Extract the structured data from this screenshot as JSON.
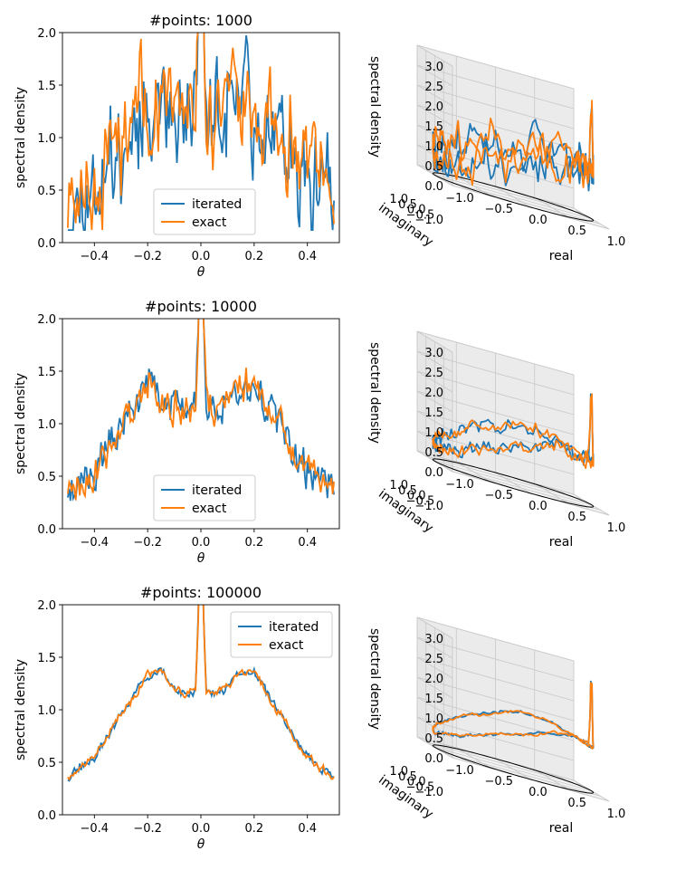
{
  "chart_data": [
    {
      "type": "line",
      "title": "#points: 1000",
      "xlabel": "θ",
      "ylabel": "spectral density",
      "xlim": [
        -0.52,
        0.52
      ],
      "ylim": [
        0.0,
        2.0
      ],
      "xticks": [
        "−0.4",
        "−0.2",
        "0.0",
        "0.2",
        "0.4"
      ],
      "yticks": [
        "0.0",
        "0.5",
        "1.0",
        "1.5",
        "2.0"
      ],
      "legend_loc": "lower-center",
      "noise": 0.42,
      "seed": 11,
      "series": [
        {
          "name": "iterated",
          "color": "#1f77b4"
        },
        {
          "name": "exact",
          "color": "#ff7f0e"
        }
      ],
      "envelope": {
        "theta": [
          -0.5,
          -0.4,
          -0.3,
          -0.2,
          -0.15,
          -0.1,
          -0.05,
          -0.02,
          0.0,
          0.02,
          0.05,
          0.1,
          0.15,
          0.2,
          0.3,
          0.4,
          0.5
        ],
        "density": [
          0.36,
          0.55,
          0.95,
          1.35,
          1.35,
          1.2,
          1.15,
          1.2,
          2.6,
          1.2,
          1.2,
          1.25,
          1.35,
          1.35,
          0.95,
          0.55,
          0.36
        ]
      }
    },
    {
      "type": "line",
      "title": "#points: 10000",
      "xlabel": "θ",
      "ylabel": "spectral density",
      "xlim": [
        -0.52,
        0.52
      ],
      "ylim": [
        0.0,
        2.0
      ],
      "xticks": [
        "−0.4",
        "−0.2",
        "0.0",
        "0.2",
        "0.4"
      ],
      "yticks": [
        "0.0",
        "0.5",
        "1.0",
        "1.5",
        "2.0"
      ],
      "legend_loc": "lower-center",
      "noise": 0.14,
      "seed": 23,
      "series": [
        {
          "name": "iterated",
          "color": "#1f77b4"
        },
        {
          "name": "exact",
          "color": "#ff7f0e"
        }
      ],
      "envelope": {
        "theta": [
          -0.5,
          -0.4,
          -0.3,
          -0.2,
          -0.15,
          -0.1,
          -0.05,
          -0.02,
          0.0,
          0.02,
          0.05,
          0.1,
          0.15,
          0.2,
          0.3,
          0.4,
          0.5
        ],
        "density": [
          0.36,
          0.55,
          0.95,
          1.38,
          1.32,
          1.15,
          1.12,
          1.2,
          2.6,
          1.2,
          1.15,
          1.22,
          1.38,
          1.38,
          0.95,
          0.55,
          0.36
        ]
      }
    },
    {
      "type": "line",
      "title": "#points: 100000",
      "xlabel": "θ",
      "ylabel": "spectral density",
      "xlim": [
        -0.52,
        0.52
      ],
      "ylim": [
        0.0,
        2.0
      ],
      "xticks": [
        "−0.4",
        "−0.2",
        "0.0",
        "0.2",
        "0.4"
      ],
      "yticks": [
        "0.0",
        "0.5",
        "1.0",
        "1.5",
        "2.0"
      ],
      "legend_loc": "upper-right",
      "noise": 0.035,
      "seed": 37,
      "series": [
        {
          "name": "iterated",
          "color": "#1f77b4"
        },
        {
          "name": "exact",
          "color": "#ff7f0e"
        }
      ],
      "envelope": {
        "theta": [
          -0.5,
          -0.4,
          -0.3,
          -0.2,
          -0.15,
          -0.1,
          -0.05,
          -0.02,
          0.0,
          0.02,
          0.05,
          0.1,
          0.15,
          0.2,
          0.3,
          0.4,
          0.5
        ],
        "density": [
          0.36,
          0.55,
          0.95,
          1.33,
          1.37,
          1.2,
          1.15,
          1.18,
          2.6,
          1.18,
          1.15,
          1.22,
          1.35,
          1.35,
          0.95,
          0.55,
          0.36
        ]
      }
    },
    {
      "type": "line3d",
      "xlabel": "real",
      "ylabel": "imaginary",
      "zlabel": "spectral density",
      "xticks": [
        "−1.0",
        "−0.5",
        "0.0",
        "0.5",
        "1.0"
      ],
      "yticks": [
        "−1.0",
        "−0.5",
        "0.0",
        "0.5",
        "1.0"
      ],
      "zticks": [
        "0.0",
        "0.5",
        "1.0",
        "1.5",
        "2.0",
        "2.5",
        "3.0"
      ],
      "zlim": [
        0.0,
        3.0
      ],
      "noise": 0.42,
      "seed": 11,
      "series": [
        {
          "name": "iterated",
          "color": "#1f77b4"
        },
        {
          "name": "exact",
          "color": "#ff7f0e"
        }
      ]
    },
    {
      "type": "line3d",
      "xlabel": "real",
      "ylabel": "imaginary",
      "zlabel": "spectral density",
      "xticks": [
        "−1.0",
        "−0.5",
        "0.0",
        "0.5",
        "1.0"
      ],
      "yticks": [
        "−1.0",
        "−0.5",
        "0.0",
        "0.5",
        "1.0"
      ],
      "zticks": [
        "0.0",
        "0.5",
        "1.0",
        "1.5",
        "2.0",
        "2.5",
        "3.0"
      ],
      "zlim": [
        0.0,
        3.0
      ],
      "noise": 0.14,
      "seed": 23,
      "series": [
        {
          "name": "iterated",
          "color": "#1f77b4"
        },
        {
          "name": "exact",
          "color": "#ff7f0e"
        }
      ]
    },
    {
      "type": "line3d",
      "xlabel": "real",
      "ylabel": "imaginary",
      "zlabel": "spectral density",
      "xticks": [
        "−1.0",
        "−0.5",
        "0.0",
        "0.5",
        "1.0"
      ],
      "yticks": [
        "−1.0",
        "−0.5",
        "0.0",
        "0.5",
        "1.0"
      ],
      "zticks": [
        "0.0",
        "0.5",
        "1.0",
        "1.5",
        "2.0",
        "2.5",
        "3.0"
      ],
      "zlim": [
        0.0,
        3.0
      ],
      "noise": 0.035,
      "seed": 37,
      "series": [
        {
          "name": "iterated",
          "color": "#1f77b4"
        },
        {
          "name": "exact",
          "color": "#ff7f0e"
        }
      ]
    }
  ]
}
